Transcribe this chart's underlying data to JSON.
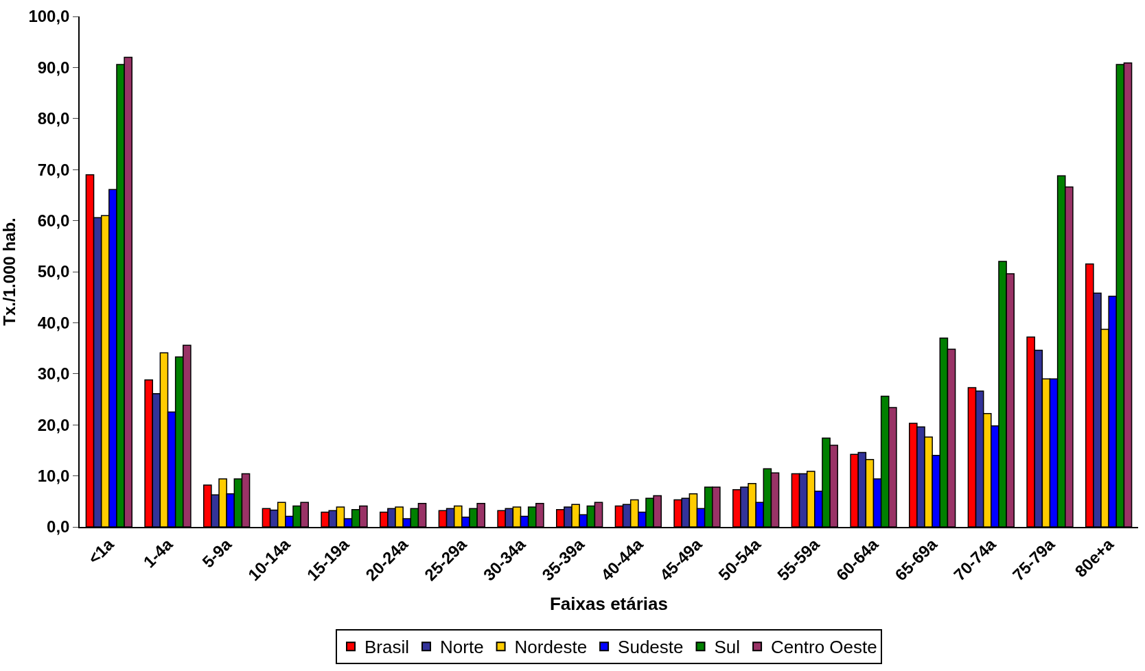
{
  "chart_data": {
    "type": "bar",
    "xlabel": "Faixas etárias",
    "ylabel": "Tx./1.000 hab.",
    "categories": [
      "<1a",
      "1-4a",
      "5-9a",
      "10-14a",
      "15-19a",
      "20-24a",
      "25-29a",
      "30-34a",
      "35-39a",
      "40-44a",
      "45-49a",
      "50-54a",
      "55-59a",
      "60-64a",
      "65-69a",
      "70-74a",
      "75-79a",
      "80e+a"
    ],
    "series": [
      {
        "name": "Brasil",
        "color": "#ff0000",
        "values": [
          69.0,
          28.8,
          8.2,
          3.6,
          2.9,
          2.9,
          3.2,
          3.2,
          3.4,
          4.1,
          5.3,
          7.3,
          10.4,
          14.2,
          20.3,
          27.3,
          37.2,
          51.5
        ]
      },
      {
        "name": "Norte",
        "color": "#333399",
        "values": [
          60.6,
          26.1,
          6.3,
          3.3,
          3.2,
          3.6,
          3.6,
          3.6,
          3.9,
          4.4,
          5.6,
          7.8,
          10.4,
          14.6,
          19.6,
          26.6,
          34.6,
          45.8
        ]
      },
      {
        "name": "Nordeste",
        "color": "#ffcc00",
        "values": [
          61.0,
          34.1,
          9.4,
          4.8,
          3.9,
          3.9,
          4.1,
          3.9,
          4.4,
          5.3,
          6.5,
          8.5,
          10.9,
          13.2,
          17.6,
          22.2,
          29.0,
          38.7
        ]
      },
      {
        "name": "Sudeste",
        "color": "#0000ff",
        "values": [
          66.1,
          22.5,
          6.5,
          2.1,
          1.6,
          1.6,
          1.9,
          2.1,
          2.4,
          2.9,
          3.6,
          4.8,
          7.0,
          9.4,
          14.0,
          19.8,
          29.0,
          45.2
        ]
      },
      {
        "name": "Sul",
        "color": "#008000",
        "values": [
          90.6,
          33.3,
          9.4,
          4.1,
          3.4,
          3.6,
          3.6,
          3.9,
          4.1,
          5.6,
          7.8,
          11.4,
          17.4,
          25.6,
          37.0,
          52.0,
          68.8,
          90.6
        ]
      },
      {
        "name": "Centro Oeste",
        "color": "#993366",
        "values": [
          92.0,
          35.6,
          10.4,
          4.8,
          4.1,
          4.6,
          4.6,
          4.6,
          4.8,
          6.1,
          7.8,
          10.6,
          16.0,
          23.4,
          34.8,
          49.6,
          66.6,
          90.9
        ]
      }
    ],
    "ylim": [
      0,
      100
    ],
    "yticks": [
      {
        "value": 0,
        "label": "0,0"
      },
      {
        "value": 10,
        "label": "10,0"
      },
      {
        "value": 20,
        "label": "20,0"
      },
      {
        "value": 30,
        "label": "30,0"
      },
      {
        "value": 40,
        "label": "40,0"
      },
      {
        "value": 50,
        "label": "50,0"
      },
      {
        "value": 60,
        "label": "60,0"
      },
      {
        "value": 70,
        "label": "70,0"
      },
      {
        "value": 80,
        "label": "80,0"
      },
      {
        "value": 90,
        "label": "90,0"
      },
      {
        "value": 100,
        "label": "100,0"
      }
    ],
    "grid": false,
    "legend": "bottom"
  }
}
